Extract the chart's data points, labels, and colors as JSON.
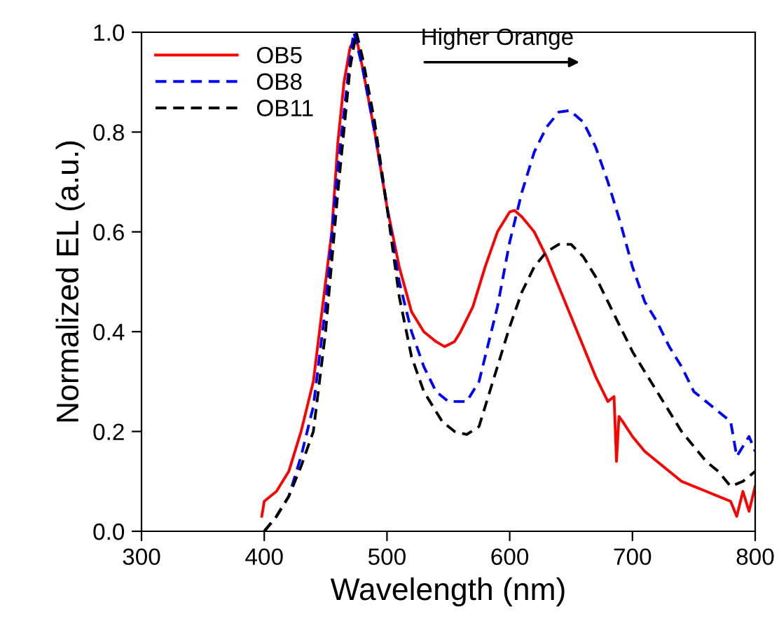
{
  "chart_data": {
    "type": "line",
    "xlabel": "Wavelength (nm)",
    "ylabel": "Normalized EL (a.u.)",
    "xlim": [
      300,
      800
    ],
    "ylim": [
      0.0,
      1.0
    ],
    "xticks": [
      300,
      400,
      500,
      600,
      700,
      800
    ],
    "yticks": [
      {
        "value": 0,
        "label": "0.0"
      },
      0.2,
      0.4,
      0.6,
      0.8,
      {
        "value": 1,
        "label": "1.0"
      }
    ],
    "grid": false,
    "legend": "top left",
    "marker": "none",
    "annotations": [
      "Higher Orange"
    ],
    "series": [
      {
        "name": "OB5",
        "color": "#ff0000",
        "line_style": "solid",
        "x": [
          398,
          400,
          410,
          420,
          430,
          440,
          450,
          455,
          460,
          465,
          470,
          475,
          480,
          490,
          500,
          510,
          520,
          530,
          540,
          547,
          555,
          560,
          570,
          580,
          590,
          600,
          604,
          610,
          620,
          630,
          640,
          650,
          660,
          670,
          680,
          685,
          687,
          689,
          692,
          700,
          710,
          720,
          730,
          740,
          750,
          760,
          770,
          780,
          785,
          790,
          795,
          800
        ],
        "values": [
          0.03,
          0.06,
          0.08,
          0.12,
          0.2,
          0.3,
          0.5,
          0.6,
          0.78,
          0.9,
          0.97,
          0.99,
          0.93,
          0.8,
          0.65,
          0.53,
          0.44,
          0.4,
          0.38,
          0.37,
          0.38,
          0.4,
          0.45,
          0.53,
          0.6,
          0.64,
          0.643,
          0.63,
          0.6,
          0.55,
          0.49,
          0.43,
          0.37,
          0.31,
          0.26,
          0.27,
          0.14,
          0.23,
          0.22,
          0.19,
          0.16,
          0.14,
          0.12,
          0.1,
          0.09,
          0.08,
          0.07,
          0.06,
          0.03,
          0.08,
          0.04,
          0.09
        ]
      },
      {
        "name": "OB8",
        "color": "#0000ff",
        "line_style": "dashed",
        "x": [
          400,
          410,
          420,
          430,
          440,
          450,
          460,
          470,
          473,
          480,
          490,
          500,
          510,
          520,
          530,
          540,
          550,
          559,
          565,
          575,
          590,
          600,
          610,
          620,
          630,
          640,
          649,
          660,
          670,
          680,
          690,
          700,
          710,
          720,
          730,
          740,
          750,
          760,
          770,
          780,
          785,
          790,
          795,
          800
        ],
        "values": [
          0.0,
          0.03,
          0.07,
          0.15,
          0.25,
          0.45,
          0.73,
          0.95,
          1.0,
          0.93,
          0.8,
          0.65,
          0.5,
          0.4,
          0.33,
          0.28,
          0.26,
          0.26,
          0.26,
          0.3,
          0.45,
          0.58,
          0.68,
          0.76,
          0.81,
          0.84,
          0.843,
          0.82,
          0.77,
          0.7,
          0.62,
          0.53,
          0.46,
          0.42,
          0.37,
          0.33,
          0.28,
          0.26,
          0.24,
          0.22,
          0.15,
          0.17,
          0.19,
          0.16
        ]
      },
      {
        "name": "OB11",
        "color": "#000000",
        "line_style": "dashed",
        "x": [
          400,
          410,
          420,
          430,
          440,
          450,
          460,
          470,
          475,
          480,
          490,
          500,
          510,
          520,
          530,
          545,
          555,
          565,
          575,
          580,
          590,
          600,
          610,
          620,
          630,
          640,
          650,
          660,
          670,
          680,
          690,
          700,
          710,
          720,
          730,
          740,
          750,
          760,
          770,
          780,
          790,
          800
        ],
        "values": [
          0.0,
          0.03,
          0.07,
          0.13,
          0.2,
          0.4,
          0.68,
          0.93,
          1.0,
          0.95,
          0.82,
          0.65,
          0.47,
          0.35,
          0.28,
          0.22,
          0.2,
          0.194,
          0.21,
          0.25,
          0.33,
          0.41,
          0.48,
          0.53,
          0.56,
          0.575,
          0.575,
          0.55,
          0.51,
          0.46,
          0.41,
          0.36,
          0.32,
          0.28,
          0.24,
          0.2,
          0.17,
          0.14,
          0.12,
          0.09,
          0.1,
          0.12
        ]
      }
    ]
  }
}
